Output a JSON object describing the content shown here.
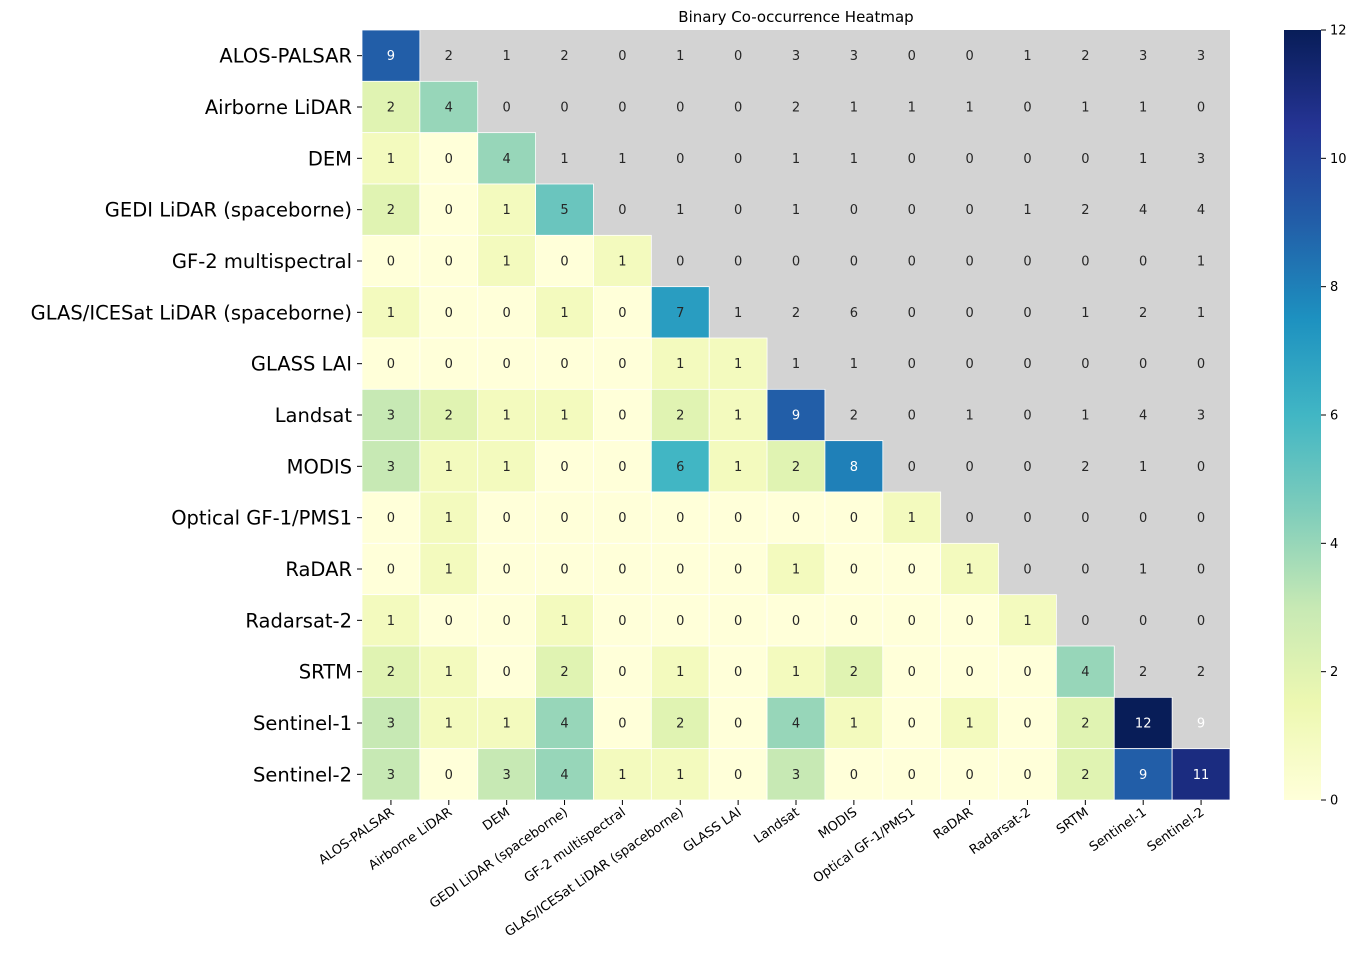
{
  "chart_data": {
    "type": "heatmap",
    "title": "Binary Co-occurrence Heatmap",
    "xlabel": "",
    "ylabel": "",
    "categories": [
      "ALOS-PALSAR",
      "Airborne LiDAR",
      "DEM",
      "GEDI LiDAR (spaceborne)",
      "GF-2 multispectral",
      "GLAS/ICESat LiDAR (spaceborne)",
      "GLASS LAI",
      "Landsat",
      "MODIS",
      "Optical GF-1/PMS1",
      "RaDAR",
      "Radarsat-2",
      "SRTM",
      "Sentinel-1",
      "Sentinel-2"
    ],
    "values": [
      [
        9,
        2,
        1,
        2,
        0,
        1,
        0,
        3,
        3,
        0,
        0,
        1,
        2,
        3,
        3
      ],
      [
        2,
        4,
        0,
        0,
        0,
        0,
        0,
        2,
        1,
        1,
        1,
        0,
        1,
        1,
        0
      ],
      [
        1,
        0,
        4,
        1,
        1,
        0,
        0,
        1,
        1,
        0,
        0,
        0,
        0,
        1,
        3
      ],
      [
        2,
        0,
        1,
        5,
        0,
        1,
        0,
        1,
        0,
        0,
        0,
        1,
        2,
        4,
        4
      ],
      [
        0,
        0,
        1,
        0,
        1,
        0,
        0,
        0,
        0,
        0,
        0,
        0,
        0,
        0,
        1
      ],
      [
        1,
        0,
        0,
        1,
        0,
        7,
        1,
        2,
        6,
        0,
        0,
        0,
        1,
        2,
        1
      ],
      [
        0,
        0,
        0,
        0,
        0,
        1,
        1,
        1,
        1,
        0,
        0,
        0,
        0,
        0,
        0
      ],
      [
        3,
        2,
        1,
        1,
        0,
        2,
        1,
        9,
        2,
        0,
        1,
        0,
        1,
        4,
        3
      ],
      [
        3,
        1,
        1,
        0,
        0,
        6,
        1,
        2,
        8,
        0,
        0,
        0,
        2,
        1,
        0
      ],
      [
        0,
        1,
        0,
        0,
        0,
        0,
        0,
        0,
        0,
        1,
        0,
        0,
        0,
        0,
        0
      ],
      [
        0,
        1,
        0,
        0,
        0,
        0,
        0,
        1,
        0,
        0,
        1,
        0,
        0,
        1,
        0
      ],
      [
        1,
        0,
        0,
        1,
        0,
        0,
        0,
        0,
        0,
        0,
        0,
        1,
        0,
        0,
        0
      ],
      [
        2,
        1,
        0,
        2,
        0,
        1,
        0,
        1,
        2,
        0,
        0,
        0,
        4,
        2,
        2
      ],
      [
        3,
        1,
        1,
        4,
        0,
        2,
        0,
        4,
        1,
        0,
        1,
        0,
        2,
        12,
        9
      ],
      [
        3,
        0,
        3,
        4,
        1,
        1,
        0,
        3,
        0,
        0,
        0,
        0,
        2,
        9,
        11
      ]
    ],
    "masked": "upper triangle (above diagonal) shown as gray background",
    "mask_color": "#d3d3d3",
    "colormap": "YlGnBu",
    "vmin": 0,
    "vmax": 12,
    "colorbar_ticks": [
      0,
      2,
      4,
      6,
      8,
      10,
      12
    ],
    "annotated": true
  }
}
